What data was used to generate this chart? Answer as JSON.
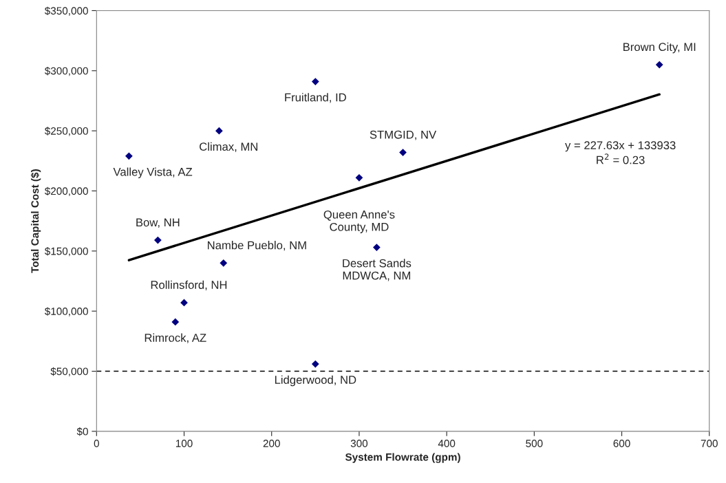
{
  "chart_data": {
    "type": "scatter",
    "xlabel": "System Flowrate (gpm)",
    "ylabel": "Total Capital Cost ($)",
    "xlim": [
      0,
      700
    ],
    "xticks": [
      0,
      100,
      200,
      300,
      400,
      500,
      600,
      700
    ],
    "ylim": [
      0,
      350000
    ],
    "yticks": [
      {
        "value": 0,
        "label": "$0"
      },
      {
        "value": 50000,
        "label": "$50,000"
      },
      {
        "value": 100000,
        "label": "$100,000"
      },
      {
        "value": 150000,
        "label": "$150,000"
      },
      {
        "value": 200000,
        "label": "$200,000"
      },
      {
        "value": 250000,
        "label": "$250,000"
      },
      {
        "value": 300000,
        "label": "$300,000"
      },
      {
        "value": 350000,
        "label": "$350,000"
      }
    ],
    "grid": false,
    "legend": false,
    "marker": "diamond",
    "series": [
      {
        "color": "#000080",
        "x": [
          37,
          140,
          250,
          70,
          145,
          100,
          90,
          250,
          320,
          300,
          350,
          643
        ],
        "values": [
          229000,
          250000,
          291000,
          159000,
          140000,
          107000,
          91000,
          56000,
          153000,
          211000,
          232000,
          305000
        ]
      },
      {
        "type": "line",
        "color": "#000000",
        "marker": "none",
        "line_style": "solid",
        "x": [
          37,
          643
        ],
        "values": [
          142400,
          280300
        ]
      }
    ],
    "ref_lines": [
      {
        "axis": "y",
        "value": 50000,
        "color": "#000000",
        "line_style": "dashed"
      }
    ],
    "annotations": [
      {
        "text": "Valley Vista, AZ",
        "x": 37,
        "y": 229000
      },
      {
        "text": "Climax, MN",
        "x": 140,
        "y": 250000
      },
      {
        "text": "Fruitland, ID",
        "x": 250,
        "y": 291000
      },
      {
        "text": "Bow, NH",
        "x": 70,
        "y": 159000
      },
      {
        "text": "Nambe Pueblo, NM",
        "x": 145,
        "y": 140000
      },
      {
        "text": "Rollinsford, NH",
        "x": 100,
        "y": 107000
      },
      {
        "text": "Rimrock, AZ",
        "x": 90,
        "y": 91000
      },
      {
        "text": "Lidgerwood, ND",
        "x": 250,
        "y": 56000
      },
      {
        "text": "Desert Sands\nMDWCA, NM",
        "x": 320,
        "y": 153000
      },
      {
        "text": "Queen Anne's\nCounty, MD",
        "x": 300,
        "y": 211000
      },
      {
        "text": "STMGID, NV",
        "x": 350,
        "y": 232000
      },
      {
        "text": "Brown City, MI",
        "x": 643,
        "y": 305000
      },
      "y = 227.63x + 133933\nR$^{2}$ = 0.23"
    ]
  }
}
